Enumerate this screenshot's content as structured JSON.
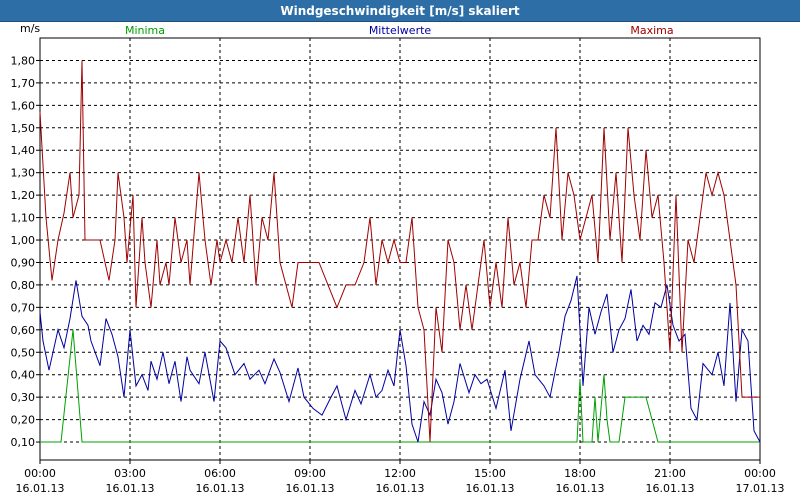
{
  "window": {
    "title": "Windgeschwindigkeit [m/s] skaliert"
  },
  "colors": {
    "titlebar": "#2d6ea6",
    "minima": "#00a000",
    "mittelwerte": "#0000a0",
    "maxima": "#a00000",
    "grid": "#000000",
    "axis": "#000000"
  },
  "chart_data": {
    "type": "line",
    "title": "Windgeschwindigkeit [m/s] skaliert",
    "ylabel": "m/s",
    "xlabel": "",
    "ylim": [
      0.02,
      1.9
    ],
    "y_ticks": [
      0.1,
      0.2,
      0.3,
      0.4,
      0.5,
      0.6,
      0.7,
      0.8,
      0.9,
      1.0,
      1.1,
      1.2,
      1.3,
      1.4,
      1.5,
      1.6,
      1.7,
      1.8
    ],
    "y_tick_labels": [
      "0,10",
      "0,20",
      "0,30",
      "0,40",
      "0,50",
      "0,60",
      "0,70",
      "0,80",
      "0,90",
      "1,00",
      "1,10",
      "1,20",
      "1,30",
      "1,40",
      "1,50",
      "1,60",
      "1,70",
      "1,80"
    ],
    "x_range_hours": [
      0,
      24
    ],
    "x_ticks": [
      {
        "hour": 0,
        "time": "00:00",
        "date": "16.01.13"
      },
      {
        "hour": 3,
        "time": "03:00",
        "date": "16.01.13"
      },
      {
        "hour": 6,
        "time": "06:00",
        "date": "16.01.13"
      },
      {
        "hour": 9,
        "time": "09:00",
        "date": "16.01.13"
      },
      {
        "hour": 12,
        "time": "12:00",
        "date": "16.01.13"
      },
      {
        "hour": 15,
        "time": "15:00",
        "date": "16.01.13"
      },
      {
        "hour": 18,
        "time": "18:00",
        "date": "16.01.13"
      },
      {
        "hour": 21,
        "time": "21:00",
        "date": "16.01.13"
      },
      {
        "hour": 24,
        "time": "00:00",
        "date": "17.01.13"
      }
    ],
    "grid": true,
    "series": [
      {
        "name": "Minima",
        "color": "#00a000",
        "x": [
          0.0,
          0.7,
          1.1,
          1.4,
          1.9,
          2.5,
          3.0,
          5.0,
          8.0,
          10.0,
          12.0,
          14.0,
          16.0,
          17.5,
          17.9,
          18.0,
          18.1,
          18.4,
          18.5,
          18.6,
          18.8,
          18.9,
          19.0,
          19.3,
          19.5,
          19.8,
          20.2,
          20.6,
          20.9,
          21.3,
          22.0,
          23.0,
          24.0
        ],
        "values": [
          0.1,
          0.1,
          0.6,
          0.1,
          0.1,
          0.1,
          0.1,
          0.1,
          0.1,
          0.1,
          0.1,
          0.1,
          0.1,
          0.1,
          0.1,
          0.38,
          0.1,
          0.1,
          0.3,
          0.1,
          0.4,
          0.2,
          0.1,
          0.1,
          0.3,
          0.3,
          0.3,
          0.1,
          0.1,
          0.1,
          0.1,
          0.1,
          0.1
        ]
      },
      {
        "name": "Mittelwerte",
        "color": "#0000a0",
        "x": [
          0.0,
          0.1,
          0.3,
          0.6,
          0.8,
          1.0,
          1.2,
          1.4,
          1.6,
          1.7,
          2.0,
          2.2,
          2.4,
          2.6,
          2.8,
          3.0,
          3.2,
          3.4,
          3.6,
          3.7,
          3.9,
          4.1,
          4.3,
          4.5,
          4.7,
          4.9,
          5.0,
          5.3,
          5.5,
          5.8,
          6.0,
          6.2,
          6.5,
          6.8,
          7.0,
          7.3,
          7.5,
          7.8,
          8.0,
          8.3,
          8.6,
          8.8,
          9.1,
          9.4,
          9.7,
          9.9,
          10.2,
          10.5,
          10.7,
          11.0,
          11.2,
          11.4,
          11.6,
          11.8,
          12.0,
          12.2,
          12.4,
          12.6,
          12.8,
          13.0,
          13.2,
          13.4,
          13.6,
          13.8,
          14.0,
          14.3,
          14.5,
          14.7,
          14.9,
          15.2,
          15.5,
          15.7,
          16.0,
          16.3,
          16.5,
          16.8,
          17.0,
          17.3,
          17.5,
          17.7,
          17.9,
          18.1,
          18.3,
          18.5,
          18.7,
          18.9,
          19.1,
          19.3,
          19.5,
          19.7,
          19.9,
          20.1,
          20.3,
          20.5,
          20.7,
          20.9,
          21.1,
          21.3,
          21.5,
          21.7,
          21.9,
          22.1,
          22.4,
          22.6,
          22.8,
          23.0,
          23.2,
          23.4,
          23.6,
          23.8,
          24.0
        ],
        "values": [
          0.68,
          0.55,
          0.42,
          0.6,
          0.52,
          0.65,
          0.82,
          0.66,
          0.62,
          0.55,
          0.44,
          0.65,
          0.58,
          0.48,
          0.3,
          0.6,
          0.35,
          0.4,
          0.33,
          0.46,
          0.38,
          0.5,
          0.36,
          0.46,
          0.28,
          0.48,
          0.42,
          0.36,
          0.5,
          0.28,
          0.55,
          0.52,
          0.4,
          0.45,
          0.38,
          0.42,
          0.36,
          0.47,
          0.41,
          0.28,
          0.43,
          0.3,
          0.25,
          0.22,
          0.3,
          0.35,
          0.2,
          0.33,
          0.27,
          0.4,
          0.3,
          0.33,
          0.42,
          0.35,
          0.6,
          0.44,
          0.18,
          0.1,
          0.28,
          0.22,
          0.38,
          0.32,
          0.18,
          0.28,
          0.45,
          0.32,
          0.4,
          0.36,
          0.38,
          0.25,
          0.42,
          0.15,
          0.38,
          0.55,
          0.4,
          0.35,
          0.3,
          0.5,
          0.66,
          0.73,
          0.84,
          0.35,
          0.7,
          0.58,
          0.68,
          0.76,
          0.5,
          0.6,
          0.65,
          0.78,
          0.55,
          0.62,
          0.58,
          0.72,
          0.7,
          0.8,
          0.62,
          0.55,
          0.58,
          0.25,
          0.2,
          0.45,
          0.4,
          0.5,
          0.35,
          0.72,
          0.28,
          0.6,
          0.55,
          0.15,
          0.1
        ]
      },
      {
        "name": "Maxima",
        "color": "#a00000",
        "x": [
          0.0,
          0.2,
          0.4,
          0.6,
          0.8,
          1.0,
          1.1,
          1.3,
          1.4,
          1.5,
          1.6,
          1.8,
          2.0,
          2.3,
          2.5,
          2.6,
          2.8,
          2.9,
          3.1,
          3.2,
          3.4,
          3.5,
          3.7,
          3.9,
          4.0,
          4.2,
          4.3,
          4.5,
          4.7,
          4.9,
          5.0,
          5.3,
          5.5,
          5.7,
          5.9,
          6.0,
          6.2,
          6.4,
          6.6,
          6.8,
          7.0,
          7.2,
          7.4,
          7.6,
          7.8,
          8.0,
          8.2,
          8.4,
          8.6,
          8.8,
          9.0,
          9.3,
          9.6,
          9.9,
          10.2,
          10.5,
          10.8,
          11.0,
          11.2,
          11.4,
          11.6,
          11.8,
          12.0,
          12.2,
          12.4,
          12.6,
          12.8,
          13.0,
          13.2,
          13.4,
          13.6,
          13.8,
          14.0,
          14.2,
          14.4,
          14.6,
          14.8,
          15.0,
          15.2,
          15.4,
          15.6,
          15.8,
          16.0,
          16.2,
          16.4,
          16.6,
          16.8,
          17.0,
          17.2,
          17.4,
          17.6,
          17.8,
          18.0,
          18.2,
          18.4,
          18.6,
          18.8,
          19.0,
          19.2,
          19.4,
          19.6,
          19.8,
          20.0,
          20.2,
          20.4,
          20.6,
          20.8,
          21.0,
          21.2,
          21.4,
          21.6,
          21.8,
          22.0,
          22.2,
          22.4,
          22.6,
          22.8,
          23.0,
          23.2,
          23.4,
          23.6,
          23.8,
          24.0
        ],
        "values": [
          1.57,
          1.1,
          0.82,
          1.0,
          1.12,
          1.3,
          1.1,
          1.2,
          1.8,
          1.0,
          1.0,
          1.0,
          1.0,
          0.82,
          1.0,
          1.3,
          1.1,
          0.9,
          1.2,
          0.7,
          1.1,
          0.9,
          0.7,
          1.0,
          0.8,
          0.9,
          0.8,
          1.1,
          0.9,
          1.0,
          0.8,
          1.3,
          1.0,
          0.8,
          1.0,
          0.9,
          1.0,
          0.9,
          1.1,
          0.9,
          1.2,
          0.8,
          1.1,
          1.0,
          1.3,
          0.9,
          0.8,
          0.7,
          0.9,
          0.9,
          0.9,
          0.9,
          0.8,
          0.7,
          0.8,
          0.8,
          0.9,
          1.1,
          0.8,
          1.0,
          0.9,
          1.0,
          0.9,
          0.9,
          1.1,
          0.7,
          0.6,
          0.1,
          0.7,
          0.5,
          1.0,
          0.9,
          0.6,
          0.8,
          0.6,
          0.8,
          1.0,
          0.7,
          0.9,
          0.7,
          1.1,
          0.8,
          0.9,
          0.7,
          1.0,
          1.0,
          1.2,
          1.1,
          1.5,
          1.0,
          1.3,
          1.2,
          1.0,
          1.1,
          1.2,
          0.9,
          1.5,
          1.0,
          1.3,
          0.9,
          1.5,
          1.2,
          1.0,
          1.4,
          1.1,
          1.2,
          0.9,
          0.5,
          1.2,
          0.5,
          1.0,
          0.9,
          1.1,
          1.3,
          1.2,
          1.3,
          1.2,
          1.0,
          0.8,
          0.3,
          0.3,
          0.3,
          0.3
        ]
      }
    ]
  }
}
